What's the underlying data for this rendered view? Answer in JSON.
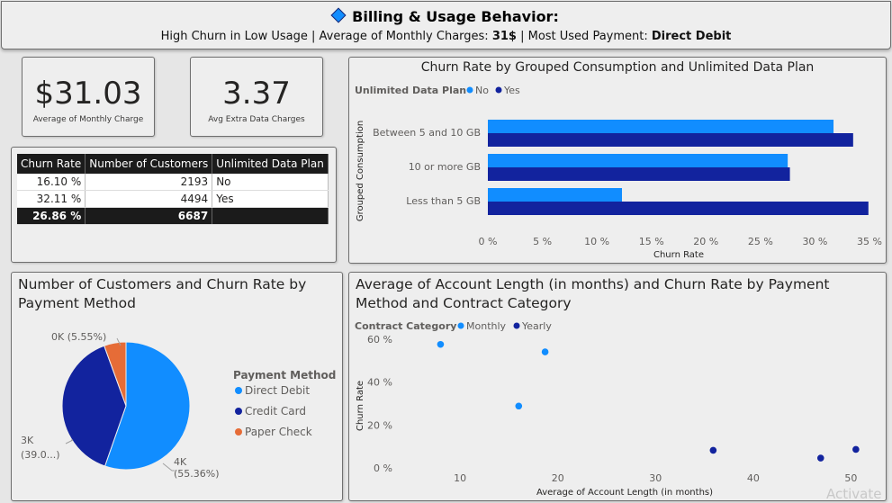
{
  "header": {
    "title": "Billing & Usage Behavior:",
    "subtitle_parts": {
      "p1": "High Churn in Low Usage | Average of Monthly Charges: ",
      "v1": "31$",
      "p2": " | Most Used Payment: ",
      "v2": "Direct Debit"
    }
  },
  "kpis": {
    "monthly_charge": {
      "value": "$31.03",
      "label": "Average of Monthly Charge"
    },
    "extra_data": {
      "value": "3.37",
      "label": "Avg Extra Data Charges"
    }
  },
  "matrix": {
    "headers": [
      "Churn Rate",
      "Number of Customers",
      "Unlimited Data Plan"
    ],
    "rows": [
      [
        "16.10 %",
        "2193",
        "No"
      ],
      [
        "32.11 %",
        "4494",
        "Yes"
      ]
    ],
    "total": [
      "26.86 %",
      "6687",
      ""
    ]
  },
  "colors": {
    "light": "#118dff",
    "dark": "#12239e",
    "orange": "#e66c37"
  },
  "chart_data": [
    {
      "type": "bar",
      "orientation": "horizontal",
      "title": "Churn Rate by Grouped Consumption and Unlimited Data Plan",
      "legend_title": "Unlimited Data Plan",
      "legend_position": "top-left",
      "categories": [
        "Between 5 and 10 GB",
        "10 or more GB",
        "Less than 5 GB"
      ],
      "series": [
        {
          "name": "No",
          "color": "#118dff",
          "values": [
            31.7,
            27.5,
            12.3
          ]
        },
        {
          "name": "Yes",
          "color": "#12239e",
          "values": [
            33.5,
            27.7,
            34.9
          ]
        }
      ],
      "xlabel": "Churn Rate",
      "ylabel": "Grouped Consumption",
      "xlim": [
        0,
        35
      ],
      "xticks": [
        "0 %",
        "5 %",
        "10 %",
        "15 %",
        "20 %",
        "25 %",
        "30 %",
        "35 %"
      ],
      "grid": false
    },
    {
      "type": "pie",
      "title": "Number of Customers and Churn Rate by Payment Method",
      "legend_title": "Payment Method",
      "legend_position": "right",
      "slices": [
        {
          "name": "Direct Debit",
          "percent": 55.36,
          "color": "#118dff",
          "label": "4K\n(55.36%)"
        },
        {
          "name": "Credit Card",
          "percent": 39.09,
          "color": "#12239e",
          "label": "3K\n(39.0...)"
        },
        {
          "name": "Paper Check",
          "percent": 5.55,
          "color": "#e66c37",
          "label": "0K (5.55%)"
        }
      ]
    },
    {
      "type": "scatter",
      "title": "Average of Account Length (in months) and Churn Rate by Payment Method and Contract Category",
      "legend_title": "Contract Category",
      "legend_position": "top-left",
      "series": [
        {
          "name": "Monthly",
          "color": "#118dff",
          "points": [
            [
              8.0,
              57.5
            ],
            [
              18.7,
              54.0
            ],
            [
              16.0,
              28.8
            ]
          ]
        },
        {
          "name": "Yearly",
          "color": "#12239e",
          "points": [
            [
              35.9,
              8.2
            ],
            [
              50.5,
              8.6
            ],
            [
              46.9,
              4.6
            ]
          ]
        }
      ],
      "xlabel": "Average of Account Length (in months)",
      "ylabel": "Churn Rate",
      "xlim": [
        4,
        53
      ],
      "ylim": [
        0,
        62
      ],
      "xticks": [
        10,
        20,
        30,
        40,
        50
      ],
      "yticks": [
        "0 %",
        "20 %",
        "40 %",
        "60 %"
      ],
      "grid": false
    }
  ],
  "watermark": "Activate"
}
